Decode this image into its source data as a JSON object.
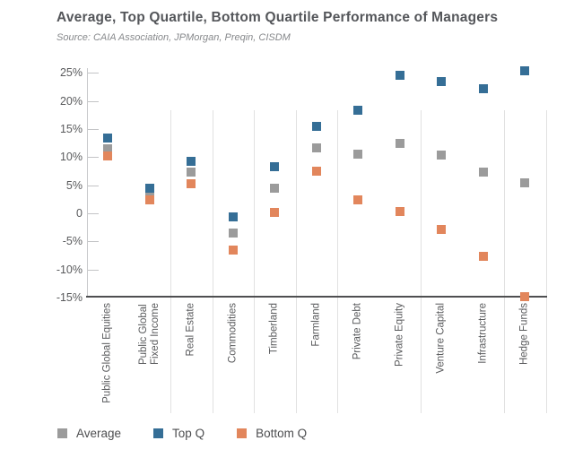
{
  "header": {
    "title": "Average, Top Quartile, Bottom Quartile Performance of Managers",
    "source": "Source: CAIA Association, JPMorgan, Preqin, CISDM"
  },
  "colors": {
    "average": "#9b9b9b",
    "top_q": "#356e96",
    "bottom_q": "#e2865c",
    "axis_text": "#595a5c",
    "grid_line": "#e1e1e1",
    "axis_line": "#4e4f51",
    "title_text": "#54565a",
    "source_text": "#87898c"
  },
  "legend": [
    {
      "key": "average",
      "label": "Average"
    },
    {
      "key": "top_q",
      "label": "Top Q"
    },
    {
      "key": "bottom_q",
      "label": "Bottom Q"
    }
  ],
  "chart_data": {
    "type": "scatter",
    "title": "Average, Top Quartile, Bottom Quartile Performance of Managers",
    "subtitle": "Source: CAIA Association, JPMorgan, Preqin, CISDM",
    "xlabel": "",
    "ylabel": "",
    "ylim": [
      -15,
      25
    ],
    "grid": "vertical-category-separators",
    "legend_position": "bottom",
    "marker_shape": "square",
    "categories": [
      "Public Global Equities",
      "Public Global\nFixed Income",
      "Real Estate",
      "Commodities",
      "Timberland",
      "Farmland",
      "Private Debt",
      "Private Equity",
      "Venture Capital",
      "Infrastructure",
      "Hedge Funds"
    ],
    "series": [
      {
        "name": "Average",
        "color_key": "average",
        "values": [
          11.5,
          3.4,
          7.4,
          -3.5,
          4.4,
          11.6,
          10.5,
          12.4,
          10.3,
          7.4,
          5.4
        ]
      },
      {
        "name": "Top Q",
        "color_key": "top_q",
        "values": [
          13.4,
          4.5,
          9.3,
          -0.6,
          8.3,
          15.5,
          18.4,
          24.5,
          23.4,
          22.2,
          25.4
        ]
      },
      {
        "name": "Bottom Q",
        "color_key": "bottom_q",
        "values": [
          10.2,
          2.4,
          5.3,
          -6.5,
          0.2,
          7.5,
          2.4,
          0.3,
          -2.8,
          -7.6,
          -14.8
        ]
      }
    ],
    "y_ticks": [
      {
        "label": "25%",
        "value": 25
      },
      {
        "label": "20%",
        "value": 20
      },
      {
        "label": "15%",
        "value": 15
      },
      {
        "label": "10%",
        "value": 10
      },
      {
        "label": "5%",
        "value": 5
      },
      {
        "label": "0",
        "value": 0
      },
      {
        "label": "-5%",
        "value": -5
      },
      {
        "label": "-10%",
        "value": -10
      },
      {
        "label": "-15%",
        "value": -15
      }
    ]
  }
}
